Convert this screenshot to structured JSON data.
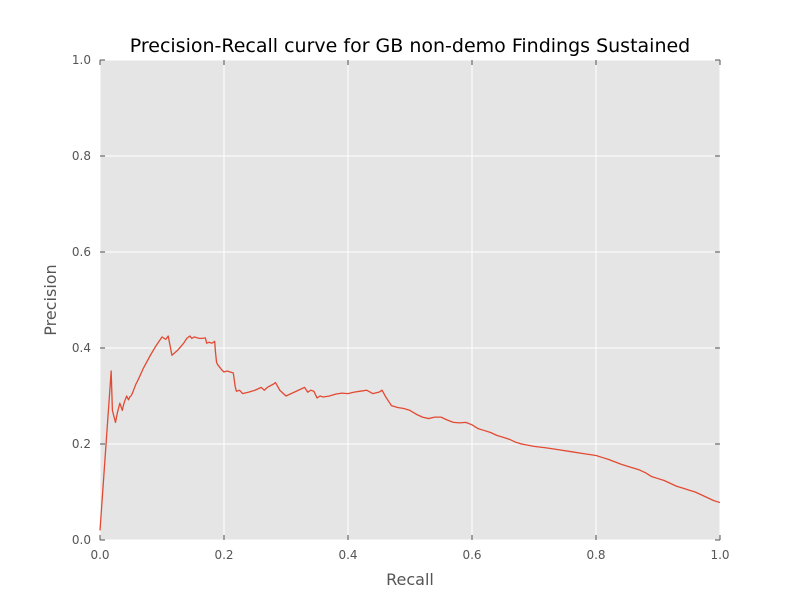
{
  "chart_data": {
    "type": "line",
    "title": "Precision-Recall curve for GB non-demo Findings Sustained",
    "xlabel": "Recall",
    "ylabel": "Precision",
    "xlim": [
      0,
      1
    ],
    "ylim": [
      0,
      1
    ],
    "xticks": [
      "0.0",
      "0.2",
      "0.4",
      "0.6",
      "0.8",
      "1.0"
    ],
    "yticks": [
      "0.0",
      "0.2",
      "0.4",
      "0.6",
      "0.8",
      "1.0"
    ],
    "grid": true,
    "legend": "none",
    "colors": {
      "background": "#e5e5e5",
      "grid": "#ffffff",
      "line": "#e24a33"
    },
    "series": [
      {
        "x": [
          0.0,
          0.018,
          0.02,
          0.025,
          0.028,
          0.032,
          0.036,
          0.038,
          0.04,
          0.043,
          0.046,
          0.048,
          0.05,
          0.052,
          0.055,
          0.058,
          0.062,
          0.07,
          0.08,
          0.09,
          0.1,
          0.106,
          0.11,
          0.113,
          0.116,
          0.125,
          0.135,
          0.14,
          0.145,
          0.148,
          0.152,
          0.155,
          0.16,
          0.165,
          0.17,
          0.172,
          0.176,
          0.18,
          0.183,
          0.185,
          0.186,
          0.188,
          0.19,
          0.193,
          0.196,
          0.2,
          0.205,
          0.21,
          0.215,
          0.218,
          0.22,
          0.225,
          0.23,
          0.24,
          0.25,
          0.26,
          0.265,
          0.27,
          0.28,
          0.283,
          0.29,
          0.3,
          0.31,
          0.32,
          0.33,
          0.335,
          0.34,
          0.345,
          0.35,
          0.355,
          0.36,
          0.37,
          0.38,
          0.39,
          0.4,
          0.41,
          0.42,
          0.43,
          0.44,
          0.45,
          0.455,
          0.46,
          0.465,
          0.47,
          0.48,
          0.49,
          0.5,
          0.51,
          0.52,
          0.53,
          0.54,
          0.55,
          0.56,
          0.57,
          0.58,
          0.59,
          0.6,
          0.61,
          0.62,
          0.63,
          0.64,
          0.65,
          0.66,
          0.67,
          0.68,
          0.7,
          0.72,
          0.74,
          0.76,
          0.78,
          0.8,
          0.81,
          0.82,
          0.83,
          0.84,
          0.85,
          0.86,
          0.87,
          0.88,
          0.89,
          0.9,
          0.91,
          0.92,
          0.93,
          0.94,
          0.95,
          0.96,
          0.97,
          0.98,
          0.99,
          1.0
        ],
        "y": [
          0.02,
          0.352,
          0.27,
          0.245,
          0.265,
          0.285,
          0.27,
          0.282,
          0.29,
          0.3,
          0.292,
          0.298,
          0.3,
          0.305,
          0.315,
          0.325,
          0.335,
          0.358,
          0.382,
          0.404,
          0.423,
          0.418,
          0.425,
          0.405,
          0.385,
          0.395,
          0.41,
          0.42,
          0.425,
          0.42,
          0.423,
          0.422,
          0.42,
          0.42,
          0.421,
          0.41,
          0.412,
          0.41,
          0.412,
          0.414,
          0.395,
          0.37,
          0.365,
          0.36,
          0.355,
          0.35,
          0.352,
          0.35,
          0.348,
          0.32,
          0.31,
          0.312,
          0.305,
          0.308,
          0.312,
          0.318,
          0.312,
          0.318,
          0.325,
          0.328,
          0.312,
          0.3,
          0.306,
          0.312,
          0.318,
          0.308,
          0.312,
          0.31,
          0.296,
          0.3,
          0.298,
          0.3,
          0.304,
          0.306,
          0.305,
          0.308,
          0.31,
          0.312,
          0.305,
          0.308,
          0.312,
          0.3,
          0.29,
          0.28,
          0.276,
          0.274,
          0.27,
          0.262,
          0.256,
          0.253,
          0.256,
          0.256,
          0.25,
          0.245,
          0.244,
          0.245,
          0.24,
          0.232,
          0.228,
          0.224,
          0.218,
          0.214,
          0.21,
          0.204,
          0.2,
          0.195,
          0.192,
          0.188,
          0.184,
          0.18,
          0.176,
          0.172,
          0.168,
          0.163,
          0.158,
          0.154,
          0.15,
          0.146,
          0.14,
          0.132,
          0.128,
          0.124,
          0.118,
          0.112,
          0.108,
          0.104,
          0.1,
          0.094,
          0.088,
          0.082,
          0.078
        ]
      }
    ]
  }
}
